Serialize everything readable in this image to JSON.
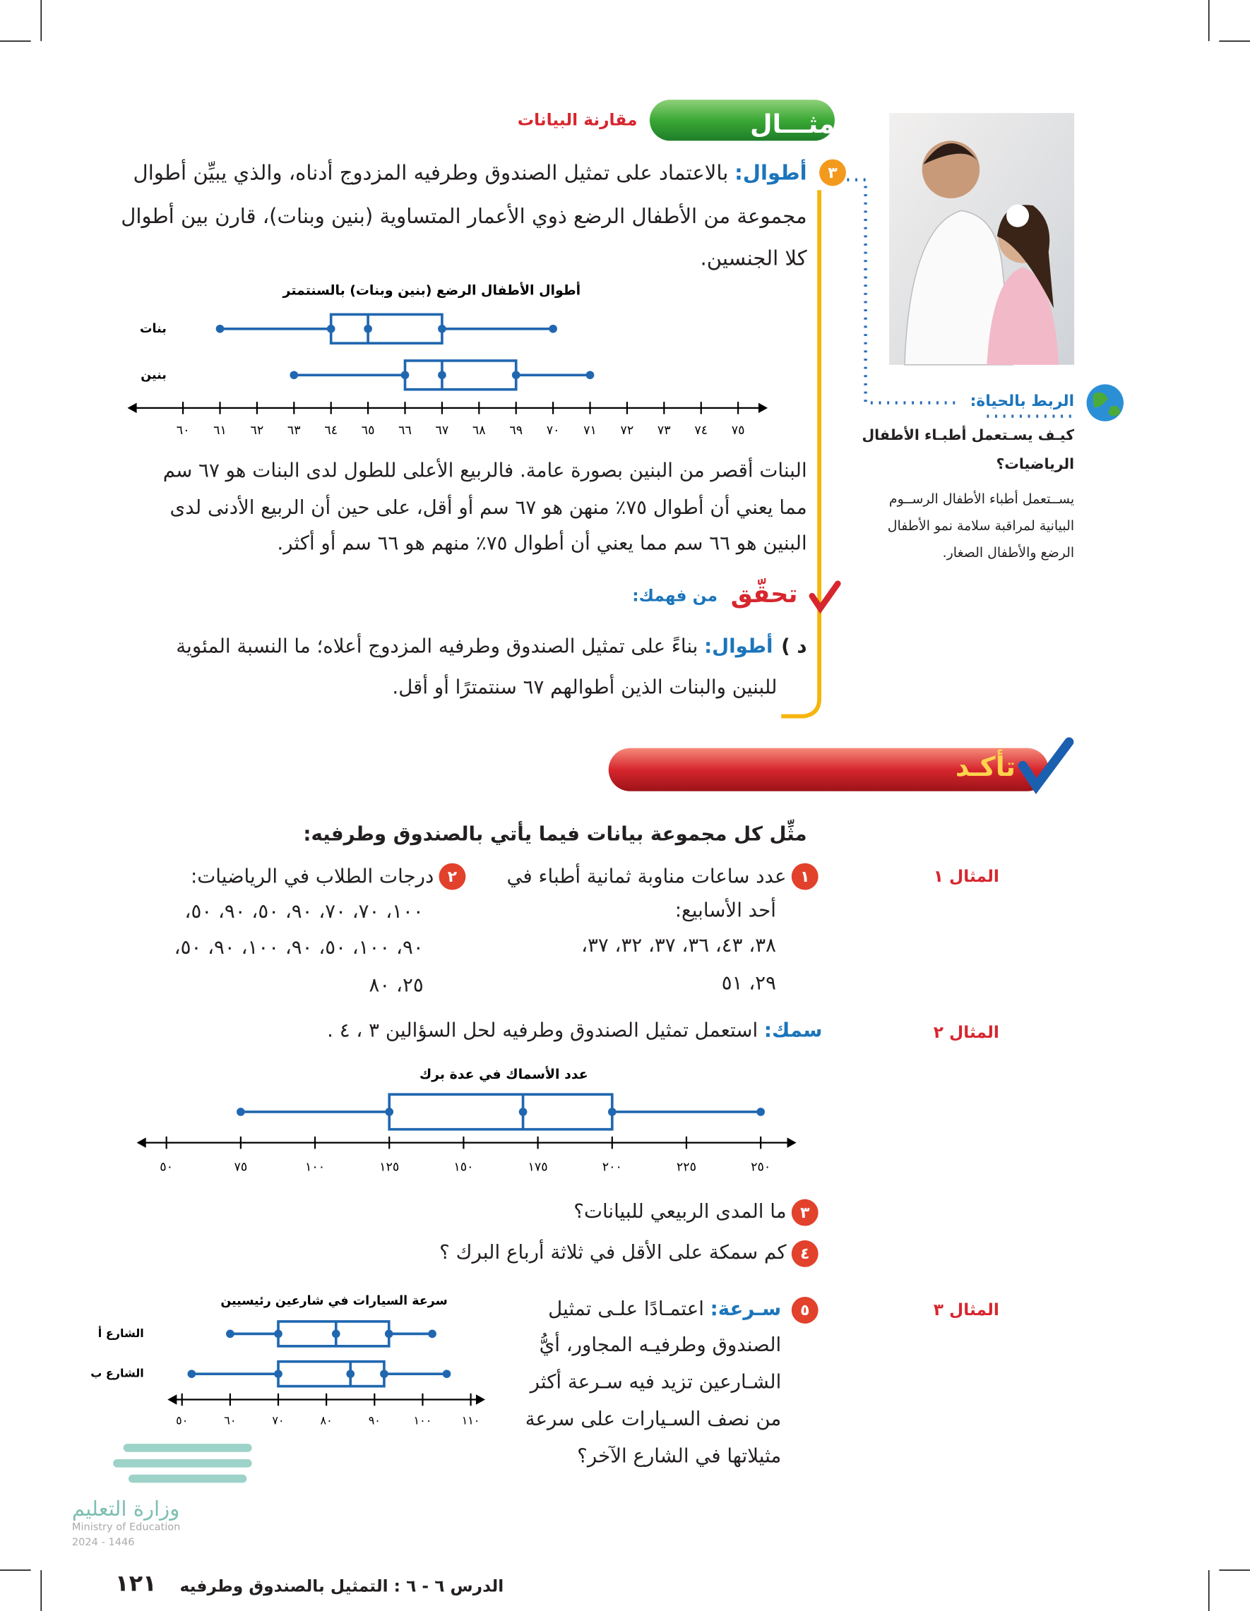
{
  "example": {
    "badge": "مثـــال",
    "subtitle": "مقارنة البيانات",
    "number": "٣",
    "keyword": "أطوال:",
    "lines": [
      "بالاعتماد على تمثيل الصندوق وطرفيه المزدوج أدناه، والذي يبيِّن أطوال",
      "مجموعة من الأطفال الرضع ذوي الأعمار المتساوية (بنين وبنات)، قارن بين أطوال",
      "كلا الجنسين."
    ]
  },
  "plot1": {
    "title": "أطوال الأطفال الرضع (بنين وبنات) بالسنتمتر",
    "xlim": [
      58.5,
      75.8
    ],
    "xticks": [
      {
        "value": 60,
        "label": "٦٠"
      },
      {
        "value": 61,
        "label": "٦١"
      },
      {
        "value": 62,
        "label": "٦٢"
      },
      {
        "value": 63,
        "label": "٦٣"
      },
      {
        "value": 64,
        "label": "٦٤"
      },
      {
        "value": 65,
        "label": "٦٥"
      },
      {
        "value": 66,
        "label": "٦٦"
      },
      {
        "value": 67,
        "label": "٦٧"
      },
      {
        "value": 68,
        "label": "٦٨"
      },
      {
        "value": 69,
        "label": "٦٩"
      },
      {
        "value": 70,
        "label": "٧٠"
      },
      {
        "value": 71,
        "label": "٧١"
      },
      {
        "value": 72,
        "label": "٧٢"
      },
      {
        "value": 73,
        "label": "٧٣"
      },
      {
        "value": 74,
        "label": "٧٤"
      },
      {
        "value": 75,
        "label": "٧٥"
      }
    ],
    "rows": [
      {
        "name": "بنات",
        "min": 61,
        "q1": 64,
        "median": 65,
        "q3": 67,
        "max": 70
      },
      {
        "name": "بنين",
        "min": 63,
        "q1": 66,
        "median": 67,
        "q3": 69,
        "max": 71
      }
    ]
  },
  "explanation": [
    "البنات أقصر من البنين بصورة عامة. فالربيع الأعلى للطول لدى البنات هو ٦٧ سم",
    "مما يعني أن أطوال ٧٥٪ منهن هو ٦٧ سم أو أقل، على حين أن الربيع الأدنى لدى",
    "البنين هو ٦٦ سم مما يعني أن أطوال ٧٥٪ منهم هو ٦٦ سم أو أكثر."
  ],
  "check": {
    "title": "تحقّق",
    "subtitle": "من فهمك:",
    "label": "د )",
    "keyword": "أطوال:",
    "lines": [
      "بناءً على تمثيل الصندوق وطرفيه المزدوج أعلاه؛ ما النسبة المئوية",
      "للبنين والبنات الذين أطوالهم ٦٧ سنتمترًا أو أقل."
    ]
  },
  "sidebar": {
    "heading": "الربط بالحياة:",
    "question": [
      "كيـف يسـتعمل أطبـاء الأطفال",
      "الرياضيات؟"
    ],
    "answer": [
      "يســتعمل أطباء الأطفال الرســوم",
      "البيانية لمراقبة سلامة نمو الأطفال",
      "الرضع والأطفال الصغار."
    ]
  },
  "confirm": {
    "title": "تأكـد",
    "instruction": "مثِّل كل مجموعة بيانات فيما يأتي بالصندوق وطرفيه:"
  },
  "example_labels": [
    "المثال ١",
    "المثال ٢",
    "المثال ٣"
  ],
  "ex1": {
    "number": "١",
    "lines": [
      "عدد ساعات مناوبة ثمانية أطباء في",
      "أحد الأسابيع:",
      "٣٨، ٤٣، ٣٦، ٣٧، ٣٢، ٣٧،",
      "٢٩، ٥١"
    ]
  },
  "ex2": {
    "number": "٢",
    "lines": [
      "درجات الطلاب في الرياضيات:",
      "١٠٠، ٧٠، ٧٠، ٩٠، ٥٠، ٩٠، ٥٠،",
      "٩٠، ١٠٠، ٥٠، ٩٠، ١٠٠، ٩٠، ٥٠،",
      "٢٥، ٨٠"
    ]
  },
  "fish": {
    "keyword": "سمك:",
    "text": "استعمل تمثيل الصندوق وطرفيه لحل السؤالين ٣ ، ٤ ."
  },
  "plot2": {
    "title": "عدد الأسماك في عدة برك",
    "xlim": [
      40,
      262
    ],
    "xticks": [
      {
        "value": 50,
        "label": "٥٠"
      },
      {
        "value": 75,
        "label": "٧٥"
      },
      {
        "value": 100,
        "label": "١٠٠"
      },
      {
        "value": 125,
        "label": "١٢٥"
      },
      {
        "value": 150,
        "label": "١٥٠"
      },
      {
        "value": 175,
        "label": "١٧٥"
      },
      {
        "value": 200,
        "label": "٢٠٠"
      },
      {
        "value": 225,
        "label": "٢٢٥"
      },
      {
        "value": 250,
        "label": "٢٥٠"
      }
    ],
    "rows": [
      {
        "min": 75,
        "q1": 125,
        "median": 170,
        "q3": 200,
        "max": 250
      }
    ]
  },
  "ex3": {
    "number": "٣",
    "text": "ما المدى الربيعي للبيانات؟"
  },
  "ex4": {
    "number": "٤",
    "text": "كم سمكة على الأقل في ثلاثة أرباع البرك ؟"
  },
  "ex5": {
    "number": "٥",
    "keyword": "سـرعة:",
    "lines": [
      "اعتمـادًا علـى تمثيل",
      "الصندوق وطرفيـه المجاور، أيُّ",
      "الشـارعين تزيد فيه سـرعة أكثر",
      "من نصف السـيارات على سرعة",
      "مثيلاتها في الشارع الآخر؟"
    ]
  },
  "plot3": {
    "title": "سرعة السيارات في شارعين رئيسيين",
    "xlim": [
      47,
      113
    ],
    "xticks": [
      {
        "value": 50,
        "label": "٥٠"
      },
      {
        "value": 60,
        "label": "٦٠"
      },
      {
        "value": 70,
        "label": "٧٠"
      },
      {
        "value": 80,
        "label": "٨٠"
      },
      {
        "value": 90,
        "label": "٩٠"
      },
      {
        "value": 100,
        "label": "١٠٠"
      },
      {
        "value": 110,
        "label": "١١٠"
      }
    ],
    "rows": [
      {
        "name": "الشارع أ",
        "min": 60,
        "q1": 70,
        "median": 82,
        "q3": 93,
        "max": 102
      },
      {
        "name": "الشارع ب",
        "min": 52,
        "q1": 70,
        "median": 85,
        "q3": 92,
        "max": 105
      }
    ]
  },
  "footer": {
    "lesson": "الدرس ٦ - ٦ :",
    "title": "التمثيل بالصندوق وطرفيه",
    "page": "١٢١",
    "ministry": "وزارة التعليم",
    "ministry_en": "Ministry of Education",
    "edition": "2024 - 1446"
  }
}
